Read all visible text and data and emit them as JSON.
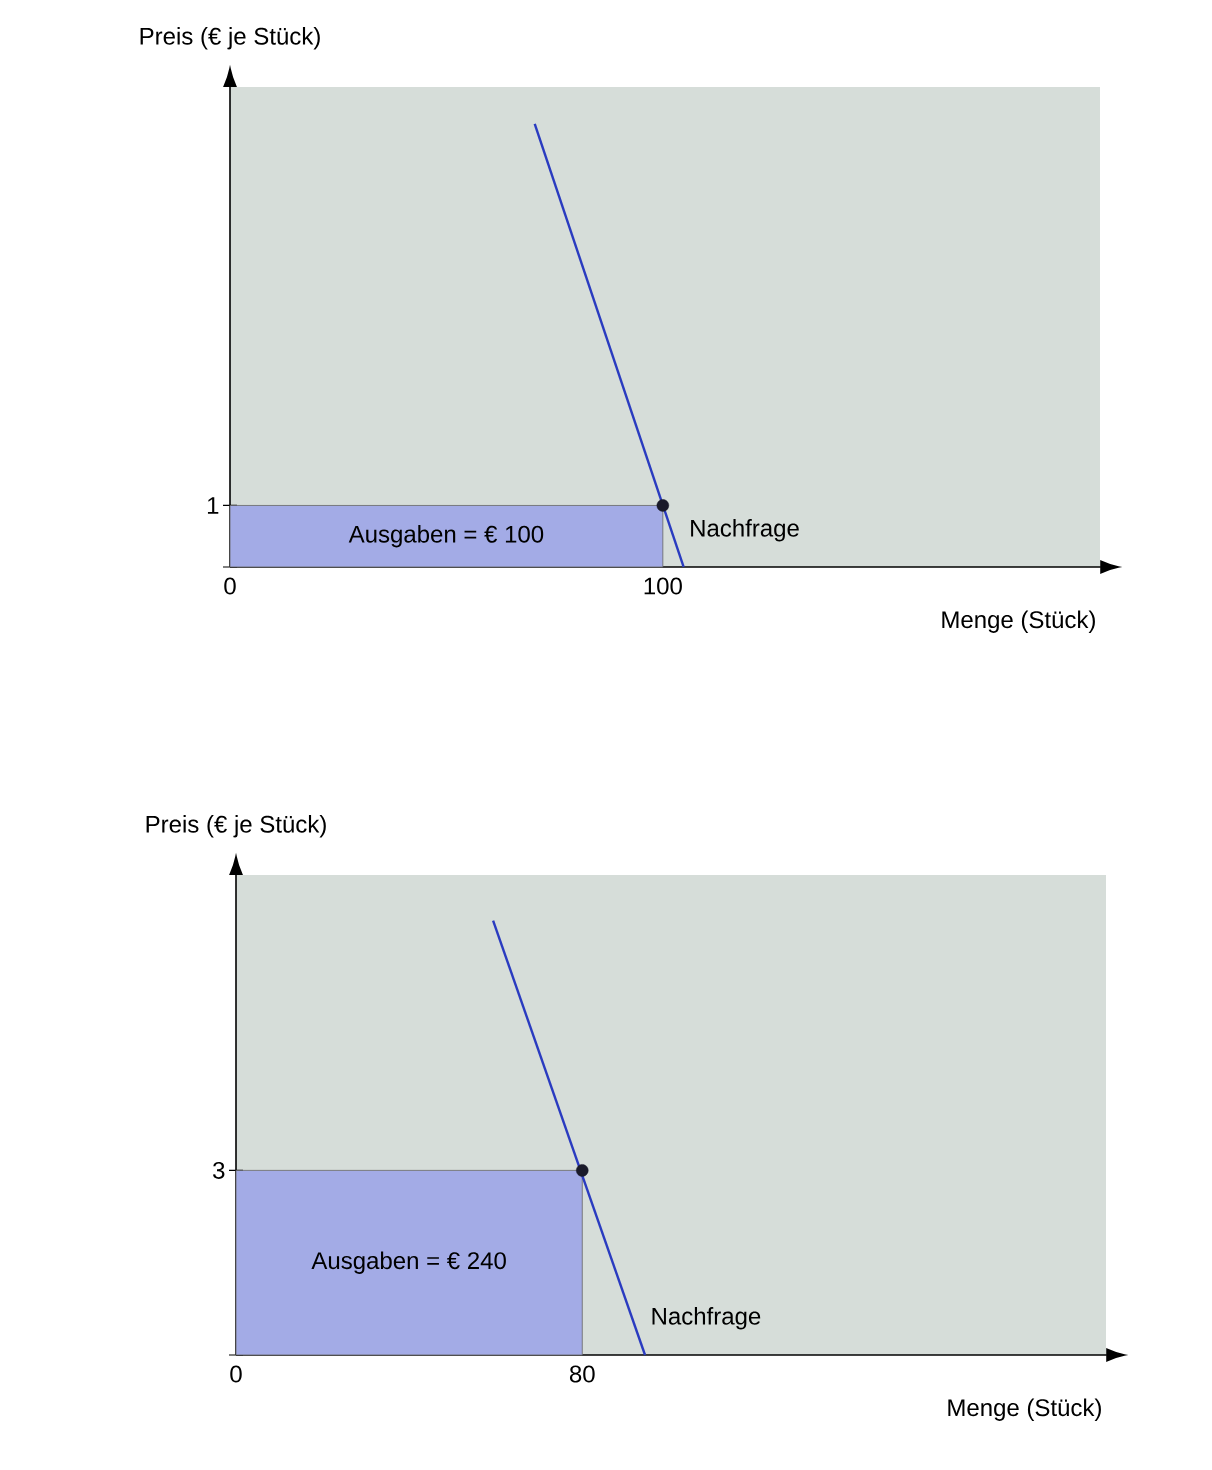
{
  "chart_data": [
    {
      "type": "line",
      "xlabel": "Menge (Stück)",
      "ylabel": "Preis (€ je Stück)",
      "xlim": [
        0,
        201
      ],
      "ylim": [
        0,
        7.8
      ],
      "xticks": [
        0,
        100
      ],
      "yticks": [
        {
          "value": 0,
          "label": null
        },
        1
      ],
      "series": [
        {
          "type": "area",
          "color": "#a3abe6",
          "x": [
            0,
            100
          ],
          "values": [
            1,
            1
          ]
        },
        {
          "name": "Nachfrage",
          "color": "#2a3bc0",
          "x": [
            70.4,
            104.8
          ],
          "values": [
            7.2,
            0
          ]
        },
        {
          "type": "scatter",
          "color": "#1a1a2a",
          "marker": "circle",
          "x": [
            100
          ],
          "values": [
            1
          ]
        }
      ],
      "annotations": [
        "Ausgaben = € 100"
      ]
    },
    {
      "type": "line",
      "xlabel": "Menge (Stück)",
      "ylabel": "Preis (€ je Stück)",
      "xlim": [
        0,
        201
      ],
      "ylim": [
        0,
        7.8
      ],
      "xticks": [
        0,
        80
      ],
      "yticks": [
        {
          "value": 0,
          "label": null
        },
        3
      ],
      "series": [
        {
          "type": "area",
          "color": "#a3abe6",
          "x": [
            0,
            80
          ],
          "values": [
            3,
            3
          ]
        },
        {
          "name": "Nachfrage",
          "color": "#2a3bc0",
          "x": [
            59.4,
            94.5
          ],
          "values": [
            7.06,
            0
          ]
        },
        {
          "type": "scatter",
          "color": "#1a1a2a",
          "marker": "circle",
          "x": [
            80
          ],
          "values": [
            3
          ]
        }
      ],
      "annotations": [
        "Ausgaben = € 240"
      ]
    }
  ]
}
